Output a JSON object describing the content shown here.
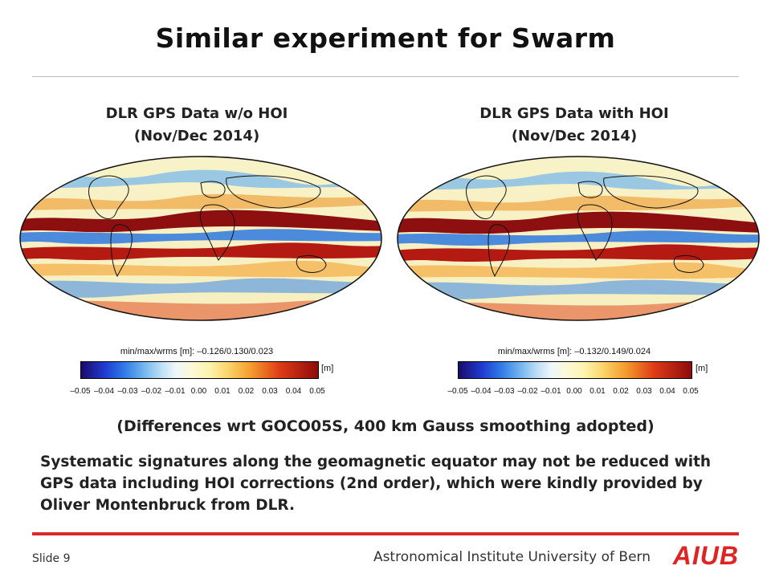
{
  "slide": {
    "title": "Similar experiment for Swarm",
    "caption": "(Differences wrt GOCO05S, 400 km Gauss smoothing adopted)",
    "body": "Systematic signatures along the geomagnetic equator may not be reduced with GPS data including HOI corrections (2nd order), which were kindly provided by Oliver Montenbruck from DLR."
  },
  "panels": [
    {
      "title_line1": "DLR GPS Data w/o HOI",
      "title_line2": "(Nov/Dec 2014)",
      "stats": "min/max/wrms [m]: –0.126/0.130/0.023"
    },
    {
      "title_line1": "DLR GPS Data with HOI",
      "title_line2": "(Nov/Dec 2014)",
      "stats": "min/max/wrms [m]: –0.132/0.149/0.024"
    }
  ],
  "colorbar": {
    "unit": "[m]",
    "ticks": [
      "–0.05",
      "–0.04",
      "–0.03",
      "–0.02",
      "–0.01",
      "0.00",
      "0.01",
      "0.02",
      "0.03",
      "0.04",
      "0.05"
    ]
  },
  "footer": {
    "slide_number": "Slide 9",
    "institute": "Astronomical Institute University of Bern",
    "logo": "AIUB"
  },
  "colors": {
    "accent": "#d92b2b",
    "logo": "#e02323"
  }
}
